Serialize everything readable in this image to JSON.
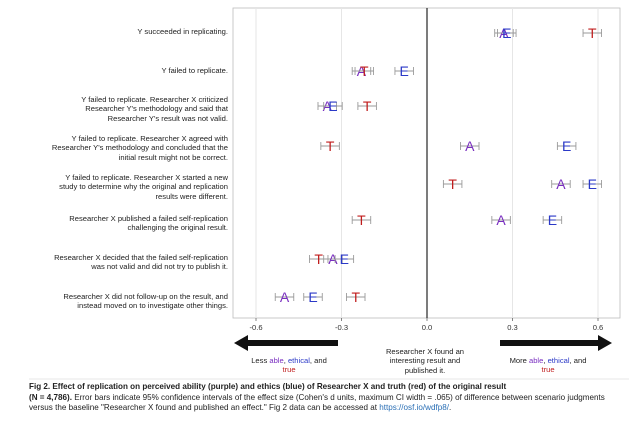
{
  "chart_data": {
    "type": "scatter",
    "xlim": [
      -0.7,
      0.7
    ],
    "x_ticks": [
      "-0.6",
      "-0.3",
      "0.0",
      "0.3",
      "0.6"
    ],
    "x_tick_values": [
      -0.6,
      -0.3,
      0.0,
      0.3,
      0.6
    ],
    "grid": "vertical",
    "zero_line": true,
    "scenarios": [
      "Y succeeded in replicating.",
      "Y failed to replicate.",
      "Y failed to replicate. Researcher X criticized\nResearcher Y's methodology and said that\nResearcher Y's result was not valid.",
      "Y failed to replicate. Researcher X agreed with\nResearcher Y's methodology and concluded that the\ninitial result might not be correct.",
      "Y failed to replicate. Researcher X started a new\nstudy to determine why the original and replication\nresults were different.",
      "Researcher X published a failed self-replication\nchallenging the original result.",
      "Researcher X decided that the failed self-replication\nwas not valid and did not try to publish it.",
      "Researcher X did not follow-up on the result, and\ninstead moved on to investigate other things."
    ],
    "series": [
      {
        "name": "able",
        "marker": "A",
        "color": "#7a2fc0",
        "values": [
          0.27,
          -0.23,
          -0.35,
          0.15,
          0.47,
          0.26,
          -0.33,
          -0.5
        ]
      },
      {
        "name": "ethical",
        "marker": "E",
        "color": "#2b39c7",
        "values": [
          0.28,
          -0.08,
          -0.33,
          0.49,
          0.58,
          0.44,
          -0.29,
          -0.4
        ]
      },
      {
        "name": "true",
        "marker": "T",
        "color": "#c01d1d",
        "values": [
          0.58,
          -0.22,
          -0.21,
          -0.34,
          0.09,
          -0.23,
          -0.38,
          -0.25
        ]
      }
    ],
    "ci_halfwidth": 0.0325
  },
  "below_axis": {
    "left_prefix": "Less ",
    "left_able": "able",
    "left_sep1": ", ",
    "left_ethical": "ethical",
    "left_sep2": ", and",
    "left_true": "true",
    "middle": "Researcher X found an\ninteresting result and\npublished it.",
    "right_prefix": "More ",
    "right_able": "able",
    "right_sep1": ", ",
    "right_ethical": "ethical",
    "right_sep2": ", and",
    "right_true": "true"
  },
  "colors": {
    "able": "#7a2fc0",
    "ethical": "#2b39c7",
    "true": "#c01d1d",
    "arrow": "#111111"
  },
  "caption": {
    "title": "Fig 2.  Effect of replication on perceived ability (purple) and ethics (blue) of Researcher X and truth (red) of the original result",
    "n_part": "(N = 4,786).",
    "body": " Error bars indicate 95% confidence intervals of the effect size (Cohen's d units, maximum CI width = .065) of difference between scenario judgments versus the baseline \"Researcher X found and published an effect.\" Fig 2 data can be accessed at ",
    "link": "https://osf.io/wdfp8/",
    "end": "."
  }
}
